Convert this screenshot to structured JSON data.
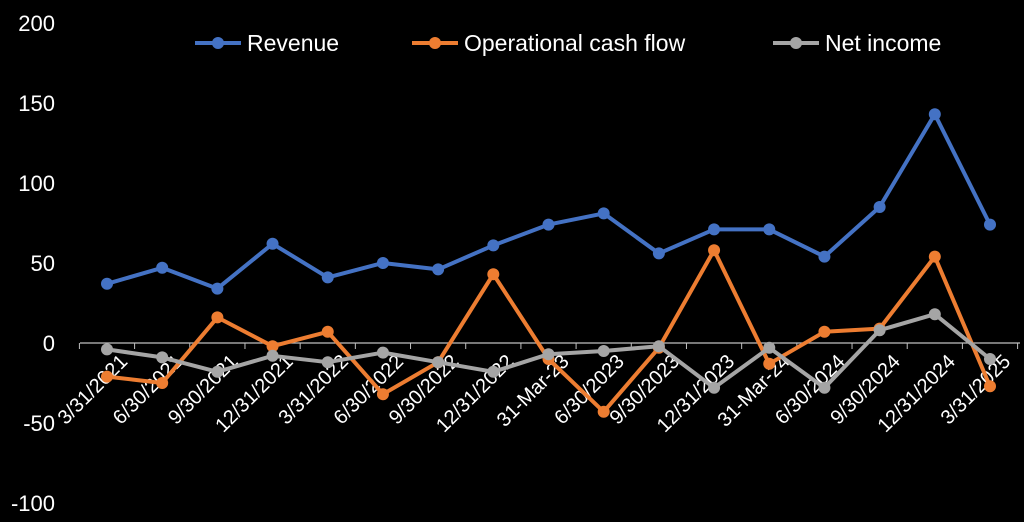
{
  "chart_data": {
    "type": "line",
    "title": "",
    "xlabel": "",
    "ylabel": "",
    "ylim": [
      -100,
      200
    ],
    "yticks": [
      200,
      150,
      100,
      50,
      0,
      -50,
      -100
    ],
    "grid": false,
    "legend_position": "top",
    "categories": [
      "3/31/2021",
      "6/30/2021",
      "9/30/2021",
      "12/31/2021",
      "3/31/2022",
      "6/30/2022",
      "9/30/2022",
      "12/31/2022",
      "31-Mar-23",
      "6/30/2023",
      "9/30/2023",
      "12/31/2023",
      "31-Mar-24",
      "6/30/2024",
      "9/30/2024",
      "12/31/2024",
      "3/31/2025"
    ],
    "series": [
      {
        "name": "Revenue",
        "color": "#4472C4",
        "values": [
          37,
          47,
          34,
          62,
          41,
          50,
          46,
          61,
          74,
          81,
          56,
          71,
          71,
          54,
          85,
          143,
          74
        ]
      },
      {
        "name": "Operational cash flow",
        "color": "#ED7D31",
        "values": [
          -21,
          -25,
          16,
          -2,
          7,
          -32,
          -12,
          43,
          -10,
          -43,
          -3,
          58,
          -13,
          7,
          9,
          54,
          -27
        ]
      },
      {
        "name": "Net income",
        "color": "#A5A5A5",
        "values": [
          -4,
          -9,
          -18,
          -8,
          -12,
          -6,
          -12,
          -18,
          -7,
          -5,
          -2,
          -28,
          -3,
          -28,
          8,
          18,
          -10
        ]
      }
    ]
  }
}
